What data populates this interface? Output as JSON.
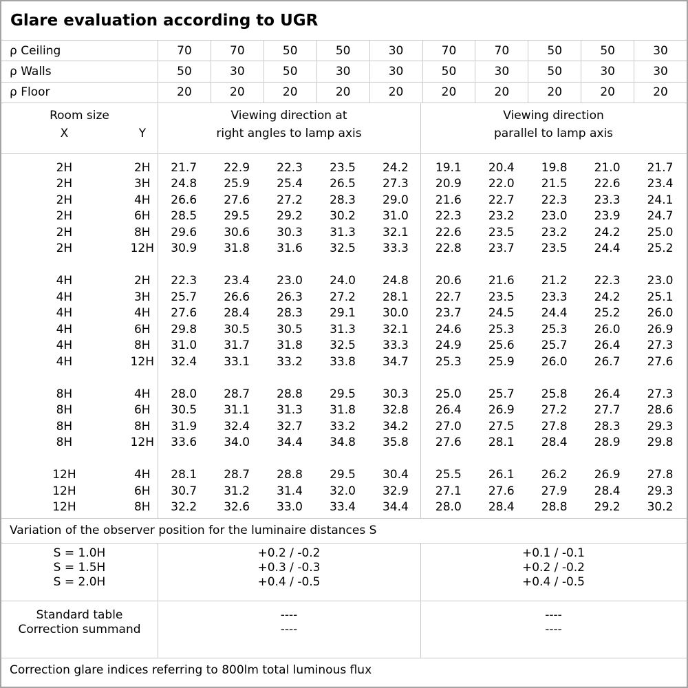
{
  "title": "Glare evaluation according to UGR",
  "reflectance_rows": [
    {
      "label": "ρ Ceiling",
      "values": [
        "70",
        "70",
        "50",
        "50",
        "30",
        "70",
        "70",
        "50",
        "50",
        "30"
      ]
    },
    {
      "label": "ρ Walls",
      "values": [
        "50",
        "30",
        "50",
        "30",
        "30",
        "50",
        "30",
        "50",
        "30",
        "30"
      ]
    },
    {
      "label": "ρ Floor",
      "values": [
        "20",
        "20",
        "20",
        "20",
        "20",
        "20",
        "20",
        "20",
        "20",
        "20"
      ]
    }
  ],
  "table_header": {
    "room_size_label": "Room size",
    "x_label": "X",
    "y_label": "Y",
    "right_angles_heading": "Viewing direction at\nright angles to lamp axis",
    "parallel_heading": "Viewing direction\nparallel to lamp axis"
  },
  "ugr_blocks": [
    {
      "rows": [
        {
          "x": "2H",
          "y": "2H",
          "right_angles": [
            "21.7",
            "22.9",
            "22.3",
            "23.5",
            "24.2"
          ],
          "parallel": [
            "19.1",
            "20.4",
            "19.8",
            "21.0",
            "21.7"
          ]
        },
        {
          "x": "2H",
          "y": "3H",
          "right_angles": [
            "24.8",
            "25.9",
            "25.4",
            "26.5",
            "27.3"
          ],
          "parallel": [
            "20.9",
            "22.0",
            "21.5",
            "22.6",
            "23.4"
          ]
        },
        {
          "x": "2H",
          "y": "4H",
          "right_angles": [
            "26.6",
            "27.6",
            "27.2",
            "28.3",
            "29.0"
          ],
          "parallel": [
            "21.6",
            "22.7",
            "22.3",
            "23.3",
            "24.1"
          ]
        },
        {
          "x": "2H",
          "y": "6H",
          "right_angles": [
            "28.5",
            "29.5",
            "29.2",
            "30.2",
            "31.0"
          ],
          "parallel": [
            "22.3",
            "23.2",
            "23.0",
            "23.9",
            "24.7"
          ]
        },
        {
          "x": "2H",
          "y": "8H",
          "right_angles": [
            "29.6",
            "30.6",
            "30.3",
            "31.3",
            "32.1"
          ],
          "parallel": [
            "22.6",
            "23.5",
            "23.2",
            "24.2",
            "25.0"
          ]
        },
        {
          "x": "2H",
          "y": "12H",
          "right_angles": [
            "30.9",
            "31.8",
            "31.6",
            "32.5",
            "33.3"
          ],
          "parallel": [
            "22.8",
            "23.7",
            "23.5",
            "24.4",
            "25.2"
          ]
        }
      ]
    },
    {
      "rows": [
        {
          "x": "4H",
          "y": "2H",
          "right_angles": [
            "22.3",
            "23.4",
            "23.0",
            "24.0",
            "24.8"
          ],
          "parallel": [
            "20.6",
            "21.6",
            "21.2",
            "22.3",
            "23.0"
          ]
        },
        {
          "x": "4H",
          "y": "3H",
          "right_angles": [
            "25.7",
            "26.6",
            "26.3",
            "27.2",
            "28.1"
          ],
          "parallel": [
            "22.7",
            "23.5",
            "23.3",
            "24.2",
            "25.1"
          ]
        },
        {
          "x": "4H",
          "y": "4H",
          "right_angles": [
            "27.6",
            "28.4",
            "28.3",
            "29.1",
            "30.0"
          ],
          "parallel": [
            "23.7",
            "24.5",
            "24.4",
            "25.2",
            "26.0"
          ]
        },
        {
          "x": "4H",
          "y": "6H",
          "right_angles": [
            "29.8",
            "30.5",
            "30.5",
            "31.3",
            "32.1"
          ],
          "parallel": [
            "24.6",
            "25.3",
            "25.3",
            "26.0",
            "26.9"
          ]
        },
        {
          "x": "4H",
          "y": "8H",
          "right_angles": [
            "31.0",
            "31.7",
            "31.8",
            "32.5",
            "33.3"
          ],
          "parallel": [
            "24.9",
            "25.6",
            "25.7",
            "26.4",
            "27.3"
          ]
        },
        {
          "x": "4H",
          "y": "12H",
          "right_angles": [
            "32.4",
            "33.1",
            "33.2",
            "33.8",
            "34.7"
          ],
          "parallel": [
            "25.3",
            "25.9",
            "26.0",
            "26.7",
            "27.6"
          ]
        }
      ]
    },
    {
      "rows": [
        {
          "x": "8H",
          "y": "4H",
          "right_angles": [
            "28.0",
            "28.7",
            "28.8",
            "29.5",
            "30.3"
          ],
          "parallel": [
            "25.0",
            "25.7",
            "25.8",
            "26.4",
            "27.3"
          ]
        },
        {
          "x": "8H",
          "y": "6H",
          "right_angles": [
            "30.5",
            "31.1",
            "31.3",
            "31.8",
            "32.8"
          ],
          "parallel": [
            "26.4",
            "26.9",
            "27.2",
            "27.7",
            "28.6"
          ]
        },
        {
          "x": "8H",
          "y": "8H",
          "right_angles": [
            "31.9",
            "32.4",
            "32.7",
            "33.2",
            "34.2"
          ],
          "parallel": [
            "27.0",
            "27.5",
            "27.8",
            "28.3",
            "29.3"
          ]
        },
        {
          "x": "8H",
          "y": "12H",
          "right_angles": [
            "33.6",
            "34.0",
            "34.4",
            "34.8",
            "35.8"
          ],
          "parallel": [
            "27.6",
            "28.1",
            "28.4",
            "28.9",
            "29.8"
          ]
        }
      ]
    },
    {
      "rows": [
        {
          "x": "12H",
          "y": "4H",
          "right_angles": [
            "28.1",
            "28.7",
            "28.8",
            "29.5",
            "30.4"
          ],
          "parallel": [
            "25.5",
            "26.1",
            "26.2",
            "26.9",
            "27.8"
          ]
        },
        {
          "x": "12H",
          "y": "6H",
          "right_angles": [
            "30.7",
            "31.2",
            "31.4",
            "32.0",
            "32.9"
          ],
          "parallel": [
            "27.1",
            "27.6",
            "27.9",
            "28.4",
            "29.3"
          ]
        },
        {
          "x": "12H",
          "y": "8H",
          "right_angles": [
            "32.2",
            "32.6",
            "33.0",
            "33.4",
            "34.4"
          ],
          "parallel": [
            "28.0",
            "28.4",
            "28.8",
            "29.2",
            "30.2"
          ]
        }
      ]
    }
  ],
  "observer_variation": {
    "heading": "Variation of the observer position for the luminaire distances S",
    "rows": [
      {
        "label": "S = 1.0H",
        "right_angles": "+0.2 / -0.2",
        "parallel": "+0.1 / -0.1"
      },
      {
        "label": "S = 1.5H",
        "right_angles": "+0.3 / -0.3",
        "parallel": "+0.2 / -0.2"
      },
      {
        "label": "S = 2.0H",
        "right_angles": "+0.4 / -0.5",
        "parallel": "+0.4 / -0.5"
      }
    ]
  },
  "summary_rows": [
    {
      "label": "Standard table",
      "right_angles": "----",
      "parallel": "----"
    },
    {
      "label": "Correction summand",
      "right_angles": "----",
      "parallel": "----"
    }
  ],
  "footer_note": "Correction glare indices referring to 800lm total luminous flux"
}
